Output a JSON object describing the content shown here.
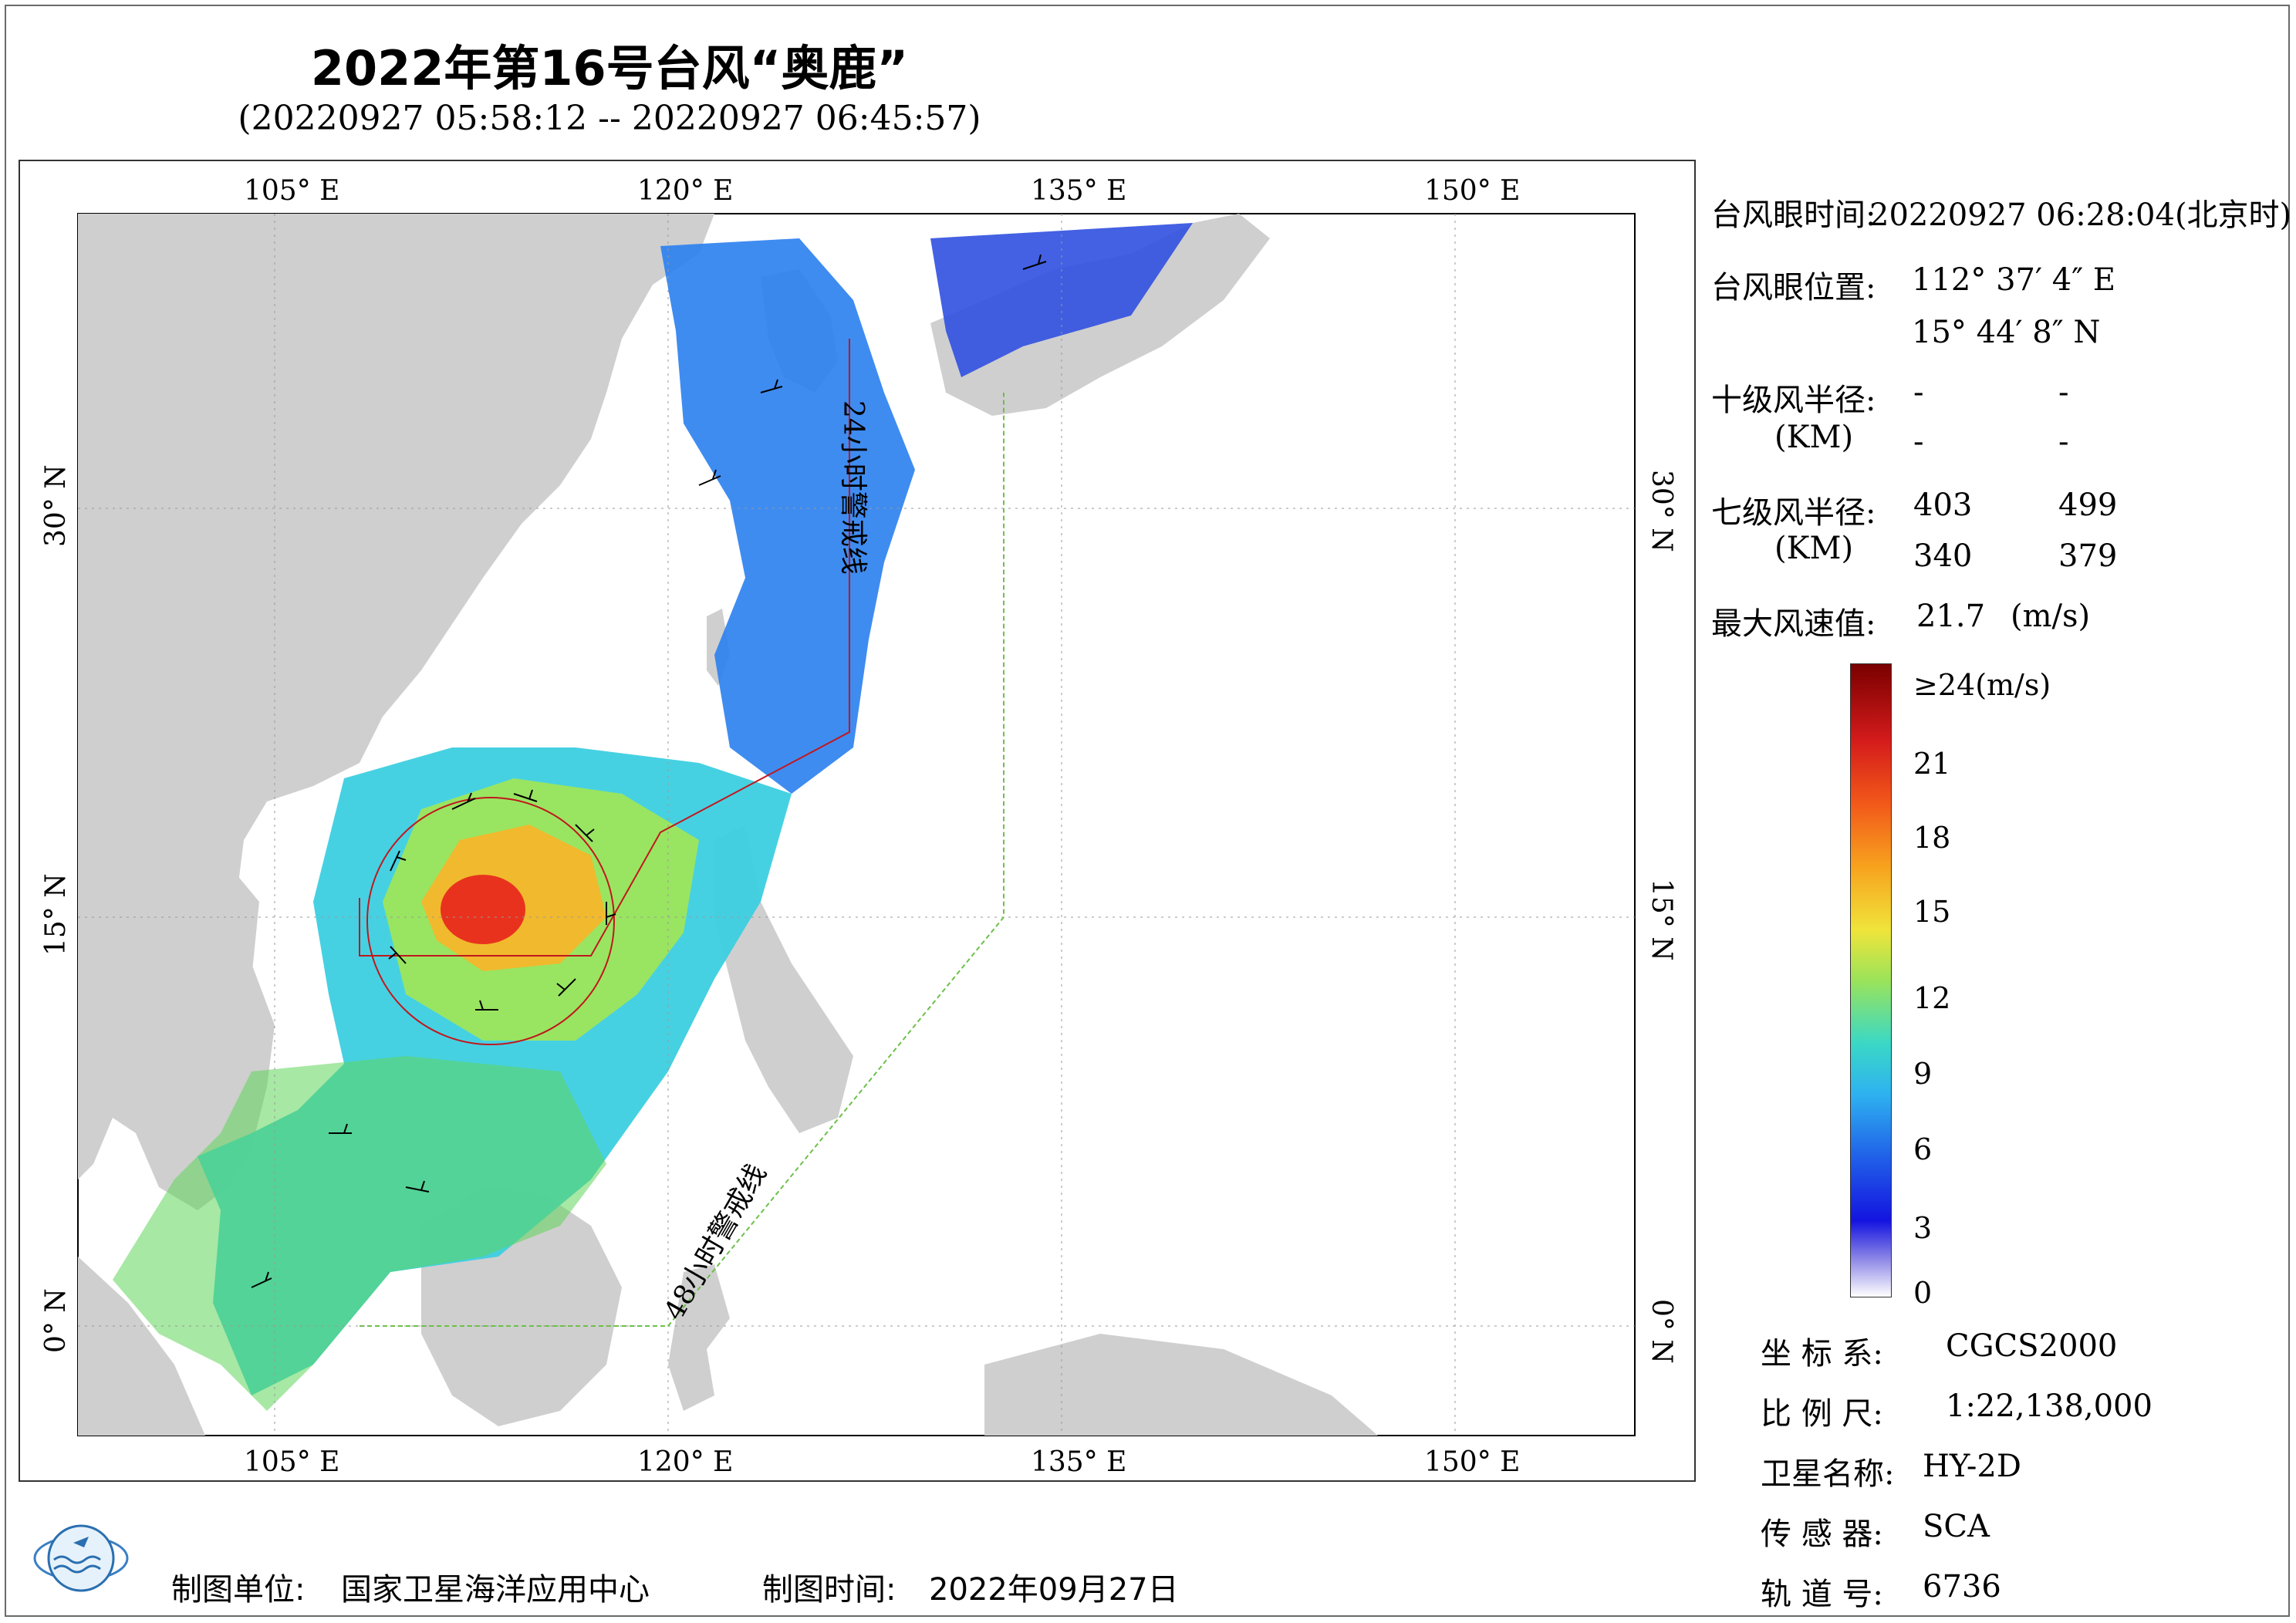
{
  "title": "2022年第16号台风“奥鹿”",
  "subtitle": "(20220927 05:58:12 -- 20220927 06:45:57)",
  "map": {
    "lon_ticks": [
      "105° E",
      "120° E",
      "135° E",
      "150° E"
    ],
    "lat_ticks": [
      "30° N",
      "15° N",
      "0° N"
    ],
    "line_24h": "24小时警戒线",
    "line_48h": "48小时警戒线"
  },
  "info": {
    "eye_time_label": "台风眼时间:",
    "eye_time_value": "20220927 06:28:04(北京时)",
    "eye_pos_label": "台风眼位置:",
    "eye_lon": "112° 37′ 4″ E",
    "eye_lat": "15° 44′ 8″ N",
    "r10_label": "十级风半径:",
    "r10_unit": "(KM)",
    "r10_values": [
      "-",
      "-",
      "-",
      "-"
    ],
    "r7_label": "七级风半径:",
    "r7_unit": "(KM)",
    "r7_values": [
      "403",
      "499",
      "340",
      "379"
    ],
    "max_wind_label": "最大风速值:",
    "max_wind_value": "21.7",
    "max_wind_unit": "(m/s)"
  },
  "colorbar": {
    "top_label": "≥24(m/s)",
    "ticks": [
      "21",
      "18",
      "15",
      "12",
      "9",
      "6",
      "3",
      "0"
    ]
  },
  "meta": {
    "crs_label": "坐 标 系:",
    "crs_value": "CGCS2000",
    "scale_label": "比 例 尺:",
    "scale_value": "1:22,138,000",
    "sat_label": "卫星名称:",
    "sat_value": "HY-2D",
    "sensor_label": "传 感 器:",
    "sensor_value": "SCA",
    "orbit_label": "轨 道 号:",
    "orbit_value": "6736"
  },
  "footer": {
    "org_label": "制图单位:",
    "org_value": "国家卫星海洋应用中心",
    "date_label": "制图时间:",
    "date_value": "2022年09月27日"
  }
}
